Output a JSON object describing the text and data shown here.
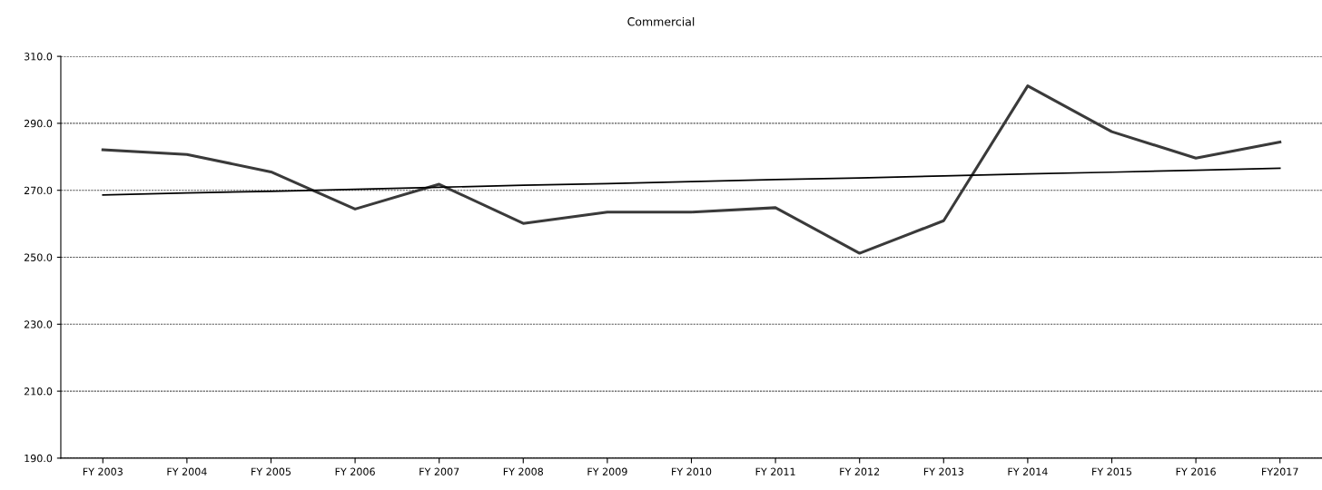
{
  "chart_data": {
    "type": "line",
    "title": "Commercial",
    "categories": [
      "FY 2003",
      "FY 2004",
      "FY 2005",
      "FY 2006",
      "FY 2007",
      "FY 2008",
      "FY 2009",
      "FY 2010",
      "FY 2011",
      "FY 2012",
      "FY 2013",
      "FY 2014",
      "FY 2015",
      "FY 2016",
      "FY2017"
    ],
    "series": [
      {
        "color": "#3a3a3a",
        "values": [
          282.1,
          280.7,
          275.5,
          264.4,
          271.8,
          260.1,
          263.5,
          263.5,
          264.8,
          251.2,
          260.9,
          301.2,
          287.5,
          279.6,
          284.4
        ]
      },
      {
        "color": "#000000",
        "values": [
          268.6,
          269.2,
          269.7,
          270.3,
          270.9,
          271.5,
          272.0,
          272.6,
          273.2,
          273.7,
          274.3,
          274.9,
          275.4,
          276.0,
          276.6
        ]
      }
    ],
    "ylim": [
      190,
      310
    ],
    "yticks": [
      {
        "value": 190,
        "label": "190.0"
      },
      {
        "value": 210,
        "label": "210.0"
      },
      {
        "value": 230,
        "label": "230.0"
      },
      {
        "value": 250,
        "label": "250.0"
      },
      {
        "value": 270,
        "label": "270.0"
      },
      {
        "value": 290,
        "label": "290.0"
      },
      {
        "value": 310,
        "label": "310.0"
      }
    ],
    "grid": "y",
    "legend": false,
    "marker": "none",
    "line_style": "solid"
  }
}
